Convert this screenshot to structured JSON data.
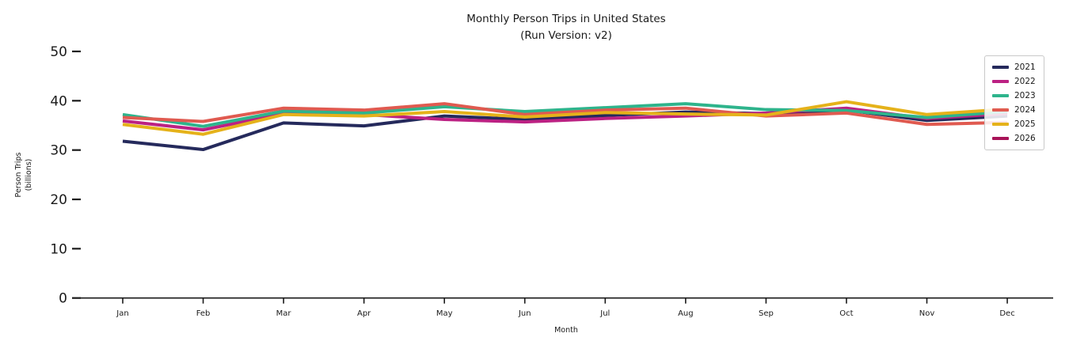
{
  "title": {
    "line1": "Monthly Person Trips in United States",
    "line2": "(Run Version: v2)"
  },
  "axes": {
    "x_label": "Month",
    "y_label_line1": "Person Trips",
    "y_label_line2": "(billions)",
    "y_ticks": [
      0,
      10,
      20,
      30,
      40,
      50
    ],
    "x_ticks": [
      "Jan",
      "Feb",
      "Mar",
      "Apr",
      "May",
      "Jun",
      "Jul",
      "Aug",
      "Sep",
      "Oct",
      "Nov",
      "Dec"
    ]
  },
  "legend": {
    "entries": [
      {
        "label": "2021",
        "color": "#252a5c"
      },
      {
        "label": "2022",
        "color": "#bc2183"
      },
      {
        "label": "2023",
        "color": "#2eb48c"
      },
      {
        "label": "2024",
        "color": "#e05a50"
      },
      {
        "label": "2025",
        "color": "#e5b21a"
      },
      {
        "label": "2026",
        "color": "#a81358"
      }
    ]
  },
  "chart_data": {
    "type": "line",
    "title": "Monthly Person Trips in United States (Run Version: v2)",
    "xlabel": "Month",
    "ylabel": "Person Trips (billions)",
    "x": [
      "Jan",
      "Feb",
      "Mar",
      "Apr",
      "May",
      "Jun",
      "Jul",
      "Aug",
      "Sep",
      "Oct",
      "Nov",
      "Dec"
    ],
    "ylim": [
      0,
      52
    ],
    "grid": false,
    "legend_position": "upper right",
    "series": [
      {
        "name": "2021",
        "color": "#252a5c",
        "values": [
          31.8,
          30.1,
          35.5,
          34.9,
          36.9,
          36.2,
          37.0,
          37.7,
          37.4,
          38.1,
          36.0,
          36.9
        ]
      },
      {
        "name": "2022",
        "color": "#bc2183",
        "values": [
          35.9,
          34.1,
          37.4,
          37.2,
          36.2,
          35.7,
          36.4,
          36.9,
          37.5,
          38.5,
          36.4,
          37.4
        ]
      },
      {
        "name": "2023",
        "color": "#2eb48c",
        "values": [
          37.2,
          34.8,
          37.9,
          37.5,
          38.8,
          37.8,
          38.6,
          39.4,
          38.2,
          38.0,
          36.6,
          37.8
        ]
      },
      {
        "name": "2024",
        "color": "#e05a50",
        "values": [
          36.6,
          35.8,
          38.5,
          38.1,
          39.4,
          37.2,
          38.1,
          38.5,
          36.9,
          37.5,
          35.2,
          35.6
        ]
      },
      {
        "name": "2025",
        "color": "#e5b21a",
        "values": [
          35.2,
          33.2,
          37.2,
          36.9,
          37.8,
          36.7,
          37.6,
          37.3,
          37.1,
          39.8,
          37.2,
          38.3
        ]
      },
      {
        "name": "2026",
        "color": "#a81358",
        "values": []
      }
    ]
  }
}
